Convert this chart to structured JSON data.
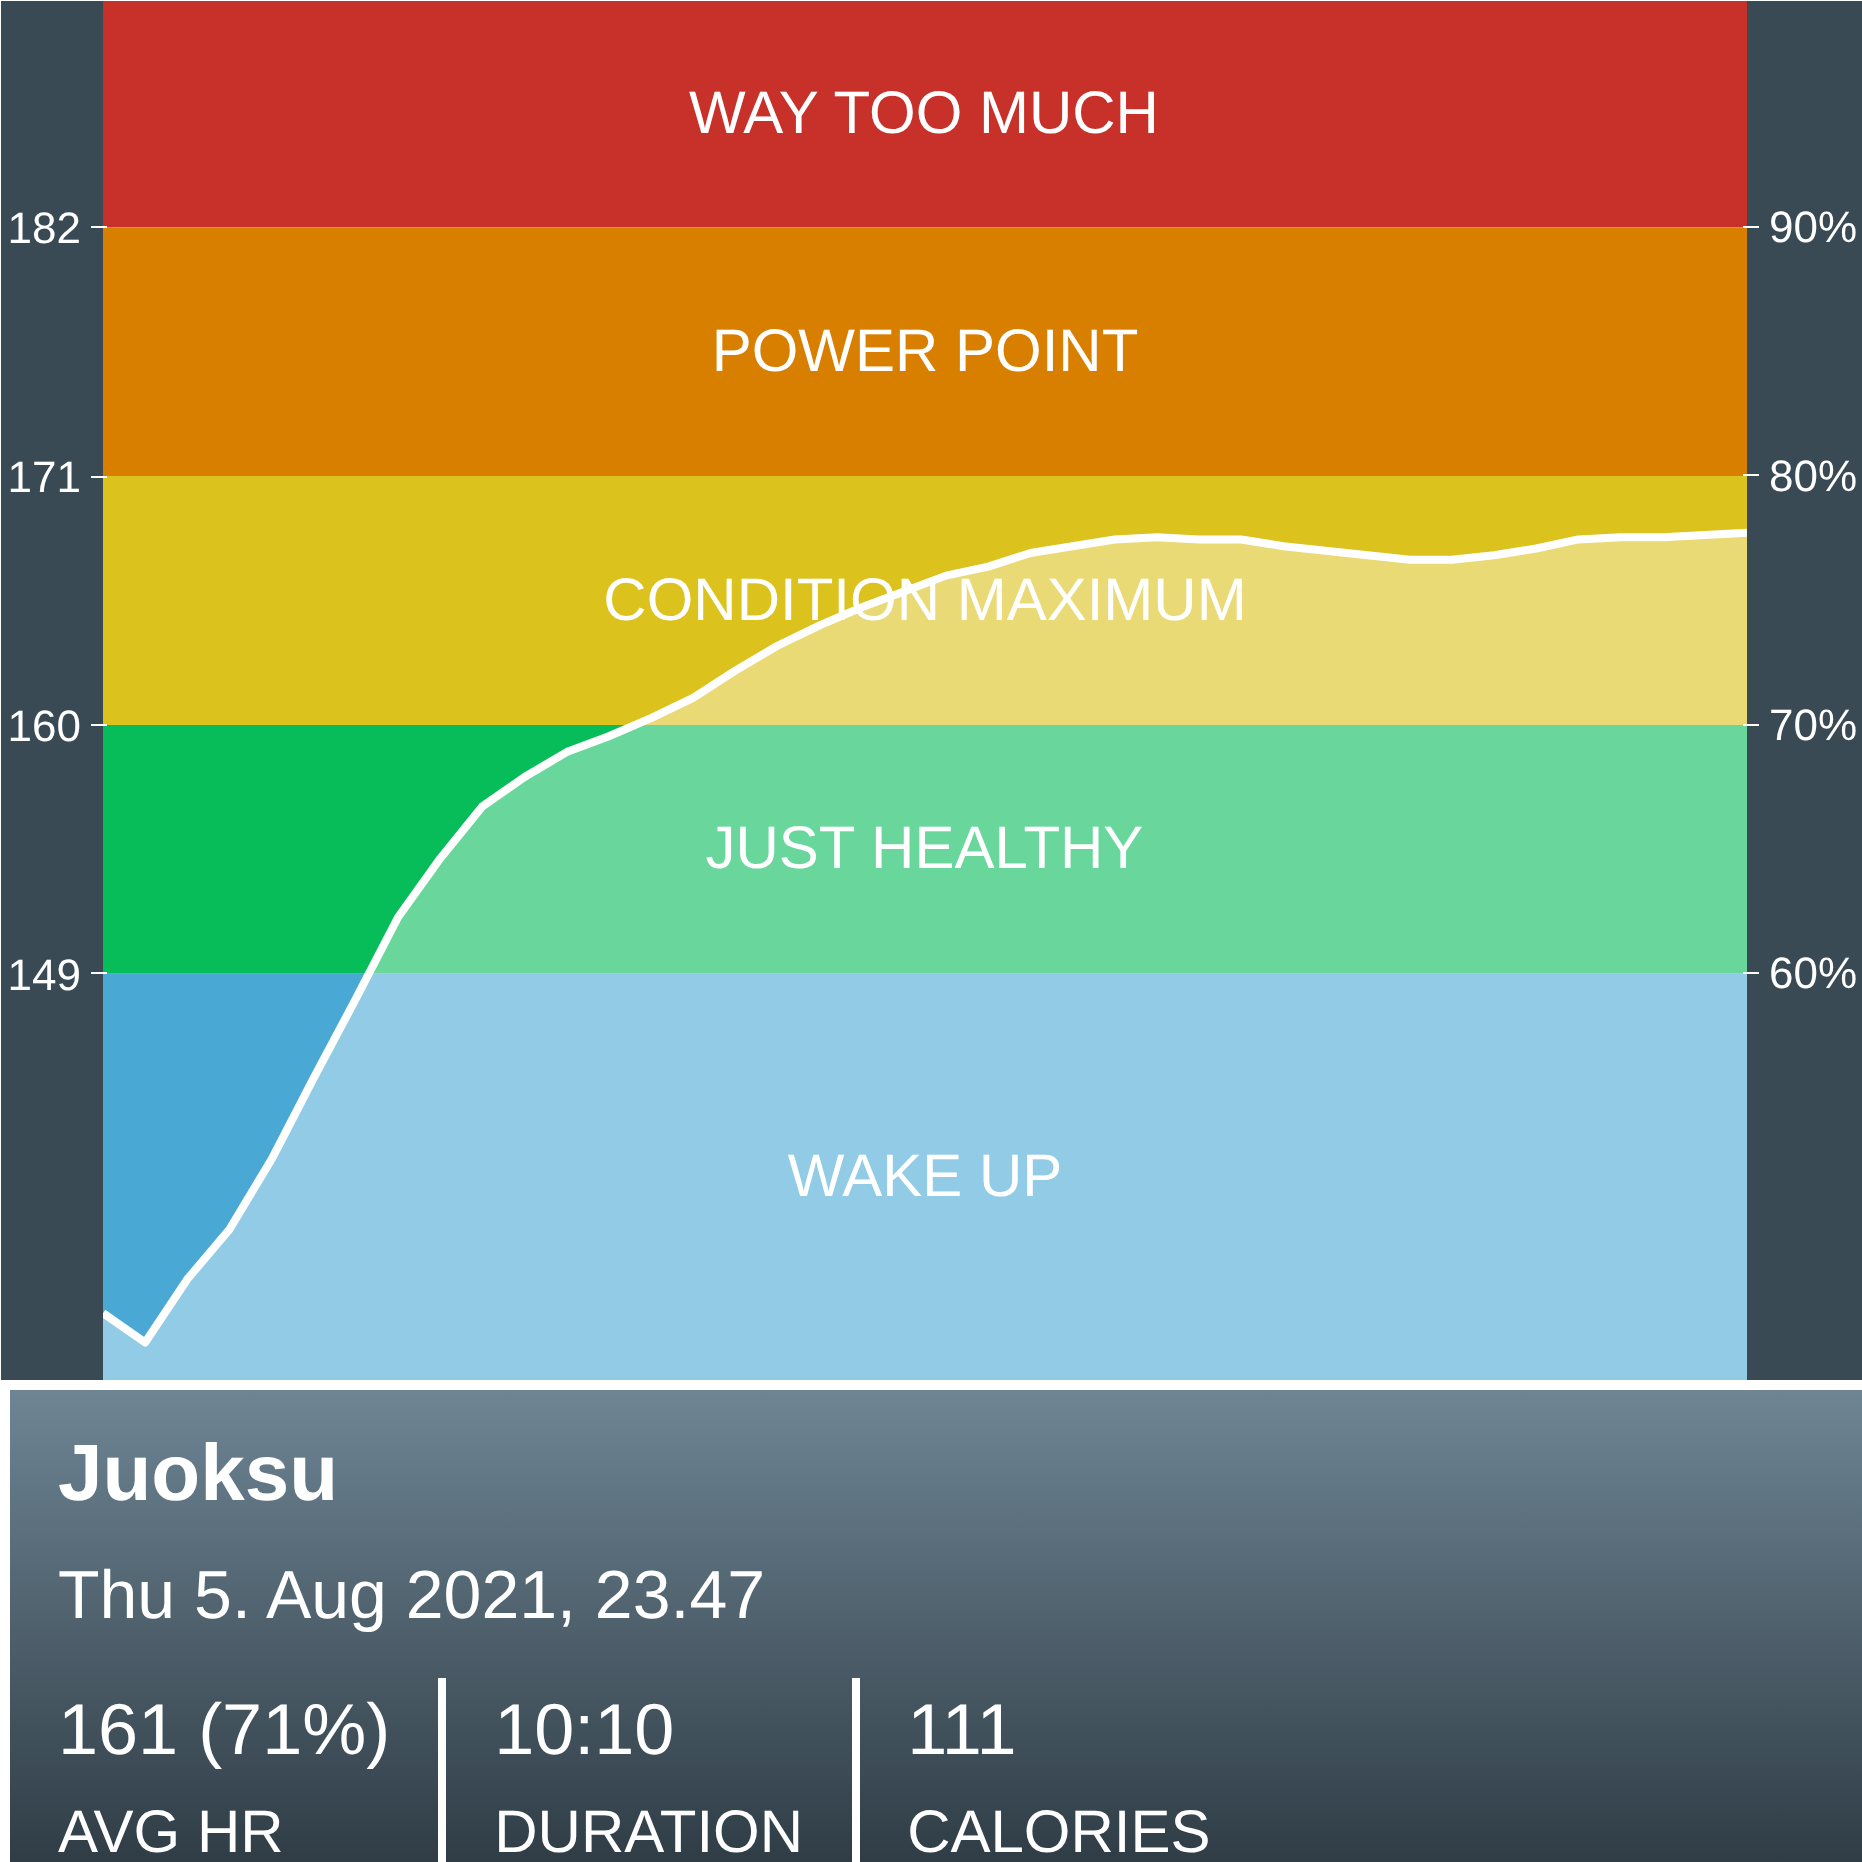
{
  "chart_data": {
    "type": "area",
    "title": "Juoksu",
    "subtitle": "Thu 5. Aug 2021, 23.47",
    "categories": [
      null,
      null,
      null,
      null,
      null,
      null,
      null,
      null,
      null,
      null,
      null,
      null,
      null,
      null,
      null,
      null,
      null,
      null,
      null,
      null,
      null,
      null,
      null,
      null,
      null,
      null,
      null,
      null,
      null,
      null,
      null,
      null,
      null,
      null,
      null,
      null,
      null,
      null,
      null,
      null
    ],
    "series": [
      {
        "color": "#ffffff",
        "values": [
          134.0,
          132.7,
          135.5,
          137.7,
          140.8,
          144.4,
          147.9,
          151.5,
          154.1,
          156.4,
          157.7,
          158.8,
          159.5,
          160.3,
          161.2,
          162.4,
          163.5,
          164.4,
          165.2,
          165.9,
          166.6,
          167.0,
          167.6,
          167.9,
          168.2,
          168.3,
          168.2,
          168.2,
          167.9,
          167.7,
          167.5,
          167.3,
          167.3,
          167.5,
          167.8,
          168.2,
          168.3,
          168.3,
          168.4,
          168.5
        ]
      }
    ],
    "ylim": [
      131,
      192
    ],
    "yticks": [
      149,
      160,
      171,
      182
    ],
    "y2lim": [
      43.6,
      99.1
    ],
    "y2ticks": [
      {
        "value": 60,
        "label": "60%"
      },
      {
        "value": 70,
        "label": "70%"
      },
      {
        "value": 80,
        "label": "80%"
      },
      {
        "value": 90,
        "label": "90%"
      }
    ],
    "bands": [
      {
        "axis": "y",
        "from": 182,
        "to": 192,
        "label": "WAY TOO MUCH",
        "color": "#c8302a"
      },
      {
        "axis": "y",
        "from": 171,
        "to": 182,
        "label": "POWER POINT",
        "color": "#d97f00"
      },
      {
        "axis": "y",
        "from": 160,
        "to": 171,
        "label": "CONDITION MAXIMUM",
        "color": "#dbc21c"
      },
      {
        "axis": "y",
        "from": 149,
        "to": 160,
        "label": "JUST HEALTHY",
        "color": "#06bd5a"
      },
      {
        "axis": "y",
        "from": 131,
        "to": 149,
        "label": "WAKE UP",
        "color": "#4aa8d4"
      }
    ],
    "annotations": [
      "161 (71%)",
      "AVG HR",
      "10:10",
      "DURATION",
      "111",
      "CALORIES"
    ],
    "tick_labels": "y",
    "grid": false
  }
}
